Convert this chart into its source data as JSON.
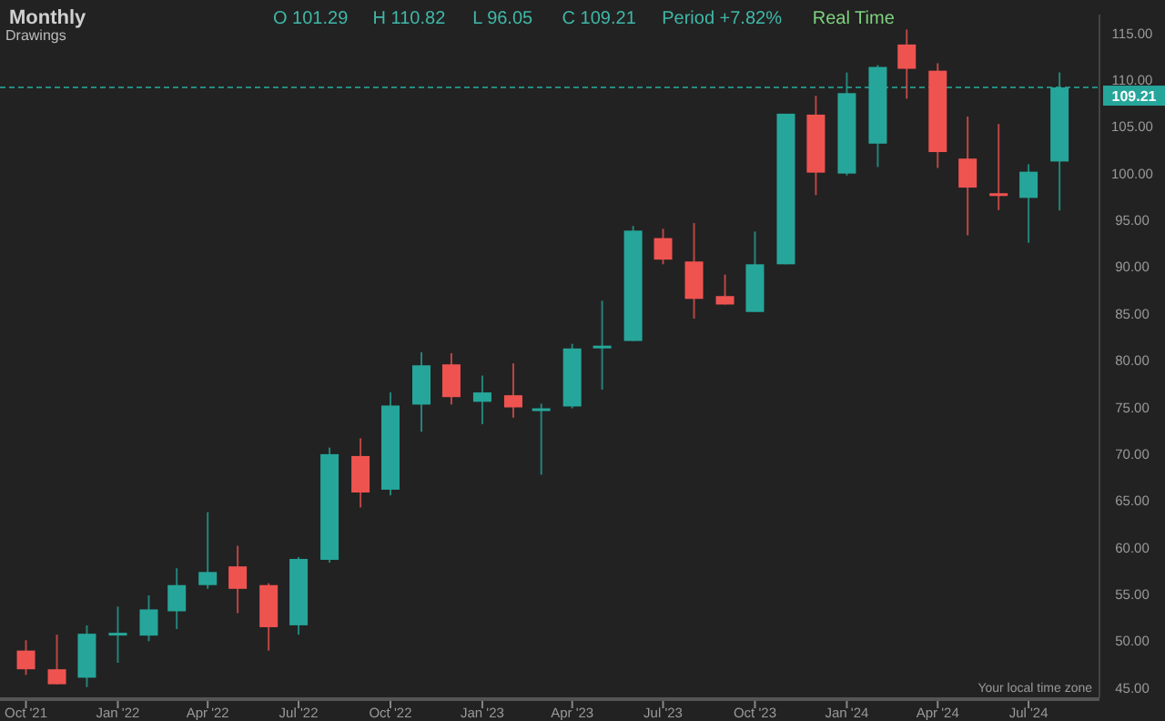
{
  "chart_data": {
    "type": "candlestick",
    "title": "Monthly",
    "annotations": [
      "O 101.29",
      "H 110.82",
      "L 96.05",
      "C 109.21",
      "Period +7.82%",
      "Real Time",
      "Drawings",
      "Your local time zone"
    ],
    "x": [
      "2021-10",
      "2021-11",
      "2021-12",
      "2022-01",
      "2022-02",
      "2022-03",
      "2022-04",
      "2022-05",
      "2022-06",
      "2022-07",
      "2022-08",
      "2022-09",
      "2022-10",
      "2022-11",
      "2022-12",
      "2023-01",
      "2023-02",
      "2023-03",
      "2023-04",
      "2023-05",
      "2023-06",
      "2023-07",
      "2023-08",
      "2023-09",
      "2023-10",
      "2023-11",
      "2023-12",
      "2024-01",
      "2024-02",
      "2024-03",
      "2024-04",
      "2024-05",
      "2024-06",
      "2024-07",
      "2024-08"
    ],
    "ohlc": [
      [
        49.0,
        50.1,
        46.4,
        47.0
      ],
      [
        47.0,
        50.7,
        45.4,
        45.4
      ],
      [
        46.1,
        51.7,
        45.1,
        50.8
      ],
      [
        50.7,
        53.7,
        47.7,
        50.9
      ],
      [
        50.6,
        54.9,
        50.0,
        53.4
      ],
      [
        53.2,
        57.8,
        51.3,
        56.0
      ],
      [
        56.0,
        63.8,
        55.6,
        57.4
      ],
      [
        58.0,
        60.2,
        53.0,
        55.6
      ],
      [
        56.0,
        56.2,
        49.0,
        51.5
      ],
      [
        51.7,
        59.0,
        50.7,
        58.8
      ],
      [
        58.7,
        70.7,
        58.4,
        70.0
      ],
      [
        69.8,
        71.7,
        64.3,
        65.9
      ],
      [
        66.2,
        76.6,
        65.6,
        75.2
      ],
      [
        75.3,
        80.9,
        72.4,
        79.5
      ],
      [
        79.6,
        80.8,
        75.3,
        76.1
      ],
      [
        75.6,
        78.4,
        73.2,
        76.6
      ],
      [
        76.3,
        79.7,
        73.9,
        75.0
      ],
      [
        74.7,
        75.4,
        67.8,
        74.9
      ],
      [
        75.1,
        81.8,
        74.9,
        81.3
      ],
      [
        81.4,
        86.4,
        76.9,
        81.6
      ],
      [
        82.1,
        94.4,
        82.1,
        93.9
      ],
      [
        93.1,
        94.1,
        90.3,
        90.8
      ],
      [
        90.6,
        94.7,
        84.5,
        86.6
      ],
      [
        86.9,
        89.2,
        86.0,
        86.0
      ],
      [
        85.2,
        93.8,
        85.2,
        90.3
      ],
      [
        90.3,
        106.4,
        90.3,
        106.4
      ],
      [
        106.3,
        108.3,
        97.7,
        100.1
      ],
      [
        100.0,
        110.8,
        99.8,
        108.6
      ],
      [
        103.2,
        111.6,
        100.7,
        111.4
      ],
      [
        113.8,
        115.4,
        108.0,
        111.2
      ],
      [
        111.0,
        111.8,
        100.6,
        102.3
      ],
      [
        101.6,
        106.1,
        93.4,
        98.5
      ],
      [
        97.9,
        105.3,
        96.1,
        97.6
      ],
      [
        97.4,
        101.0,
        92.6,
        100.2
      ],
      [
        101.29,
        110.82,
        96.05,
        109.21
      ]
    ],
    "colors": [
      "#ef5350",
      "#ef5350",
      "#26a69a",
      "#26a69a",
      "#26a69a",
      "#26a69a",
      "#26a69a",
      "#ef5350",
      "#ef5350",
      "#26a69a",
      "#26a69a",
      "#ef5350",
      "#26a69a",
      "#26a69a",
      "#ef5350",
      "#26a69a",
      "#ef5350",
      "#26a69a",
      "#26a69a",
      "#26a69a",
      "#26a69a",
      "#ef5350",
      "#ef5350",
      "#ef5350",
      "#26a69a",
      "#26a69a",
      "#ef5350",
      "#26a69a",
      "#26a69a",
      "#ef5350",
      "#ef5350",
      "#ef5350",
      "#ef5350",
      "#26a69a",
      "#26a69a"
    ],
    "xlim": [
      "2021-09-05",
      "2024-09-10"
    ],
    "xticks": [
      {
        "value": "2021-10",
        "label": "Oct '21"
      },
      {
        "value": "2022-01",
        "label": "Jan '22"
      },
      {
        "value": "2022-04",
        "label": "Apr '22"
      },
      {
        "value": "2022-07",
        "label": "Jul '22"
      },
      {
        "value": "2022-10",
        "label": "Oct '22"
      },
      {
        "value": "2023-01",
        "label": "Jan '23"
      },
      {
        "value": "2023-04",
        "label": "Apr '23"
      },
      {
        "value": "2023-07",
        "label": "Jul '23"
      },
      {
        "value": "2023-10",
        "label": "Oct '23"
      },
      {
        "value": "2024-01",
        "label": "Jan '24"
      },
      {
        "value": "2024-04",
        "label": "Apr '24"
      },
      {
        "value": "2024-07",
        "label": "Jul '24"
      }
    ],
    "ylim": [
      44,
      117
    ],
    "yticks": [
      {
        "value": 45,
        "label": "45.00"
      },
      {
        "value": 50,
        "label": "50.00"
      },
      {
        "value": 55,
        "label": "55.00"
      },
      {
        "value": 60,
        "label": "60.00"
      },
      {
        "value": 65,
        "label": "65.00"
      },
      {
        "value": 70,
        "label": "70.00"
      },
      {
        "value": 75,
        "label": "75.00"
      },
      {
        "value": 80,
        "label": "80.00"
      },
      {
        "value": 85,
        "label": "85.00"
      },
      {
        "value": 90,
        "label": "90.00"
      },
      {
        "value": 95,
        "label": "95.00"
      },
      {
        "value": 100,
        "label": "100.00"
      },
      {
        "value": 105,
        "label": "105.00"
      },
      {
        "value": 110,
        "label": "110.00"
      },
      {
        "value": 115,
        "label": "115.00"
      }
    ],
    "ref_lines": [
      {
        "axis": "y",
        "value": 109.21,
        "label": "109.21",
        "color": "#26a69a",
        "line_style": "dashed"
      }
    ],
    "grid": false
  }
}
